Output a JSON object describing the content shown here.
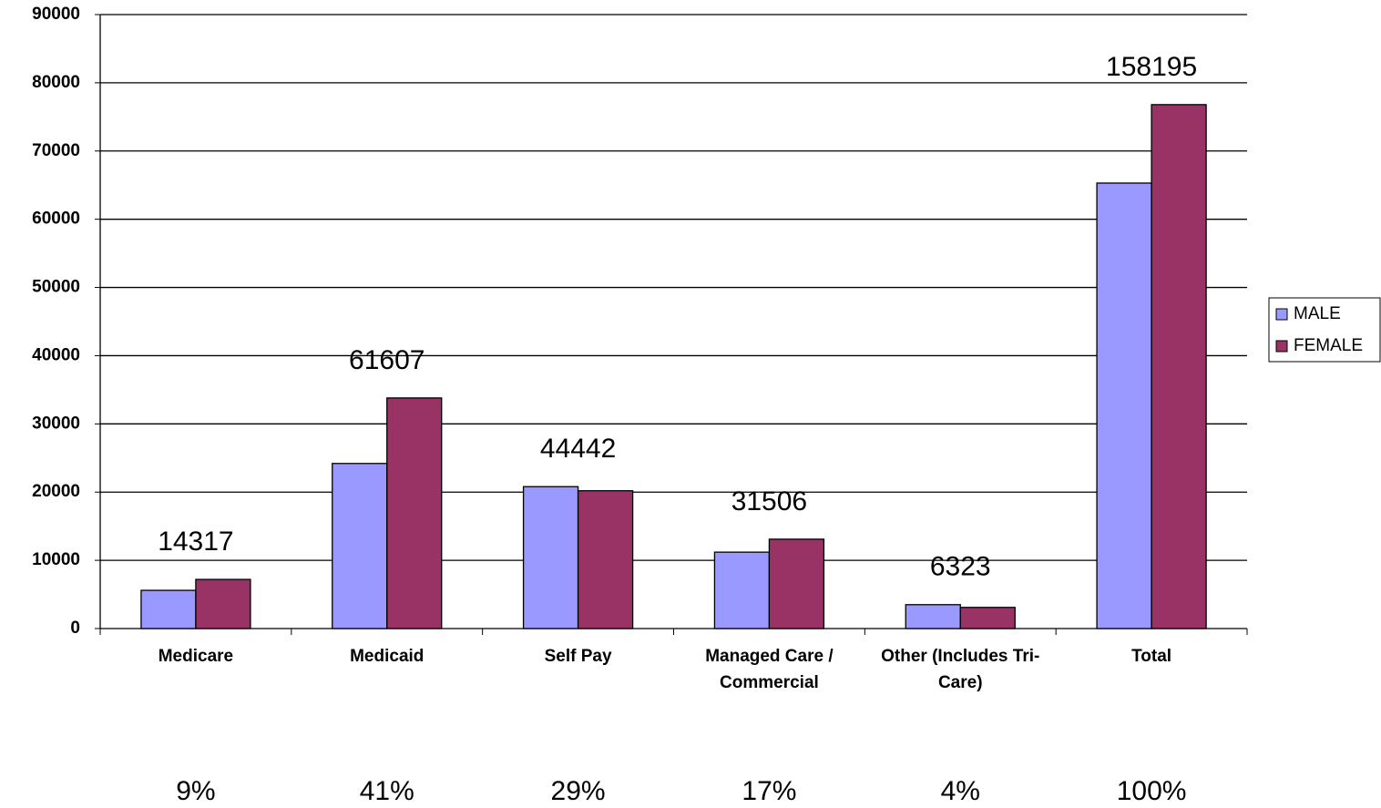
{
  "chart_data": {
    "type": "bar",
    "categories": [
      "Medicare",
      "Medicaid",
      "Self Pay",
      "Managed Care / Commercial",
      "Other (Includes Tri-Care)",
      "Total"
    ],
    "series": [
      {
        "name": "MALE",
        "color": "#9999ff",
        "values": [
          5600,
          24200,
          20800,
          11200,
          3500,
          65300
        ]
      },
      {
        "name": "FEMALE",
        "color": "#993366",
        "values": [
          7200,
          33800,
          20200,
          13100,
          3100,
          76800
        ]
      }
    ],
    "annotations": {
      "totals": [
        14317,
        61607,
        44442,
        31506,
        6323,
        158195
      ],
      "percentages": [
        "9%",
        "41%",
        "29%",
        "17%",
        "4%",
        "100%"
      ]
    },
    "ylim": [
      0,
      90000
    ],
    "yticks": [
      0,
      10000,
      20000,
      30000,
      40000,
      50000,
      60000,
      70000,
      80000,
      90000
    ],
    "grid": true,
    "legend": "right"
  }
}
